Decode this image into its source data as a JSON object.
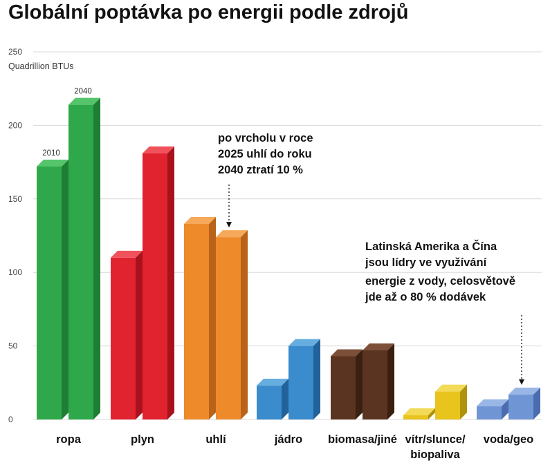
{
  "title": "Globální poptávka po energii podle zdrojů",
  "chart_data": {
    "type": "bar",
    "title": "Globální poptávka po energii podle zdrojů",
    "ylabel": "Quadrillion BTUs",
    "xlabel": "",
    "ylim": [
      0,
      250
    ],
    "yticks": [
      "0",
      "50",
      "100",
      "150",
      "200",
      "250"
    ],
    "categories": [
      "ropa",
      "plyn",
      "uhlí",
      "jádro",
      "biomasa/jiné",
      "vítr/slunce/\nbiopaliva",
      "voda/geo"
    ],
    "series": [
      {
        "name": "2010",
        "values": [
          172,
          110,
          133,
          23,
          43,
          3,
          9
        ]
      },
      {
        "name": "2040",
        "values": [
          214,
          181,
          124,
          50,
          47,
          19,
          17
        ]
      }
    ],
    "colors": [
      {
        "category": "ropa",
        "front": "#2ea84a",
        "top": "#55c46a",
        "side": "#1e7e34"
      },
      {
        "category": "plyn",
        "front": "#e0232f",
        "top": "#f0525c",
        "side": "#a8121c"
      },
      {
        "category": "uhlí",
        "front": "#ee8a2a",
        "top": "#f6a95a",
        "side": "#b8621a"
      },
      {
        "category": "jádro",
        "front": "#3a8ccc",
        "top": "#67aee0",
        "side": "#22629a"
      },
      {
        "category": "biomasa/jiné",
        "front": "#5a3420",
        "top": "#7c5038",
        "side": "#3a2010"
      },
      {
        "category": "vítr/slunce/biopaliva",
        "front": "#e8c41c",
        "top": "#f3da58",
        "side": "#b0920c"
      },
      {
        "category": "voda/geo",
        "front": "#6f95d4",
        "top": "#9ab6e6",
        "side": "#4b6cae"
      }
    ],
    "bar_labels": [
      {
        "category": "ropa",
        "series": "2010",
        "text": "2010"
      },
      {
        "category": "ropa",
        "series": "2040",
        "text": "2040"
      }
    ],
    "annotations": [
      {
        "id": "coal",
        "target": "uhlí",
        "series": "2040",
        "lines": [
          "po vrcholu v roce",
          "2025 uhlí do roku",
          "2040 ztratí 10 %"
        ]
      },
      {
        "id": "hydro",
        "target": "voda/geo",
        "series": "2040",
        "lines": [
          "Latinská Amerika a Čína",
          "jsou lídry ve využívání",
          "energie z vody, celosvětově",
          "jde až o 80 % dodávek"
        ]
      }
    ],
    "grid": true,
    "legend": "none"
  }
}
